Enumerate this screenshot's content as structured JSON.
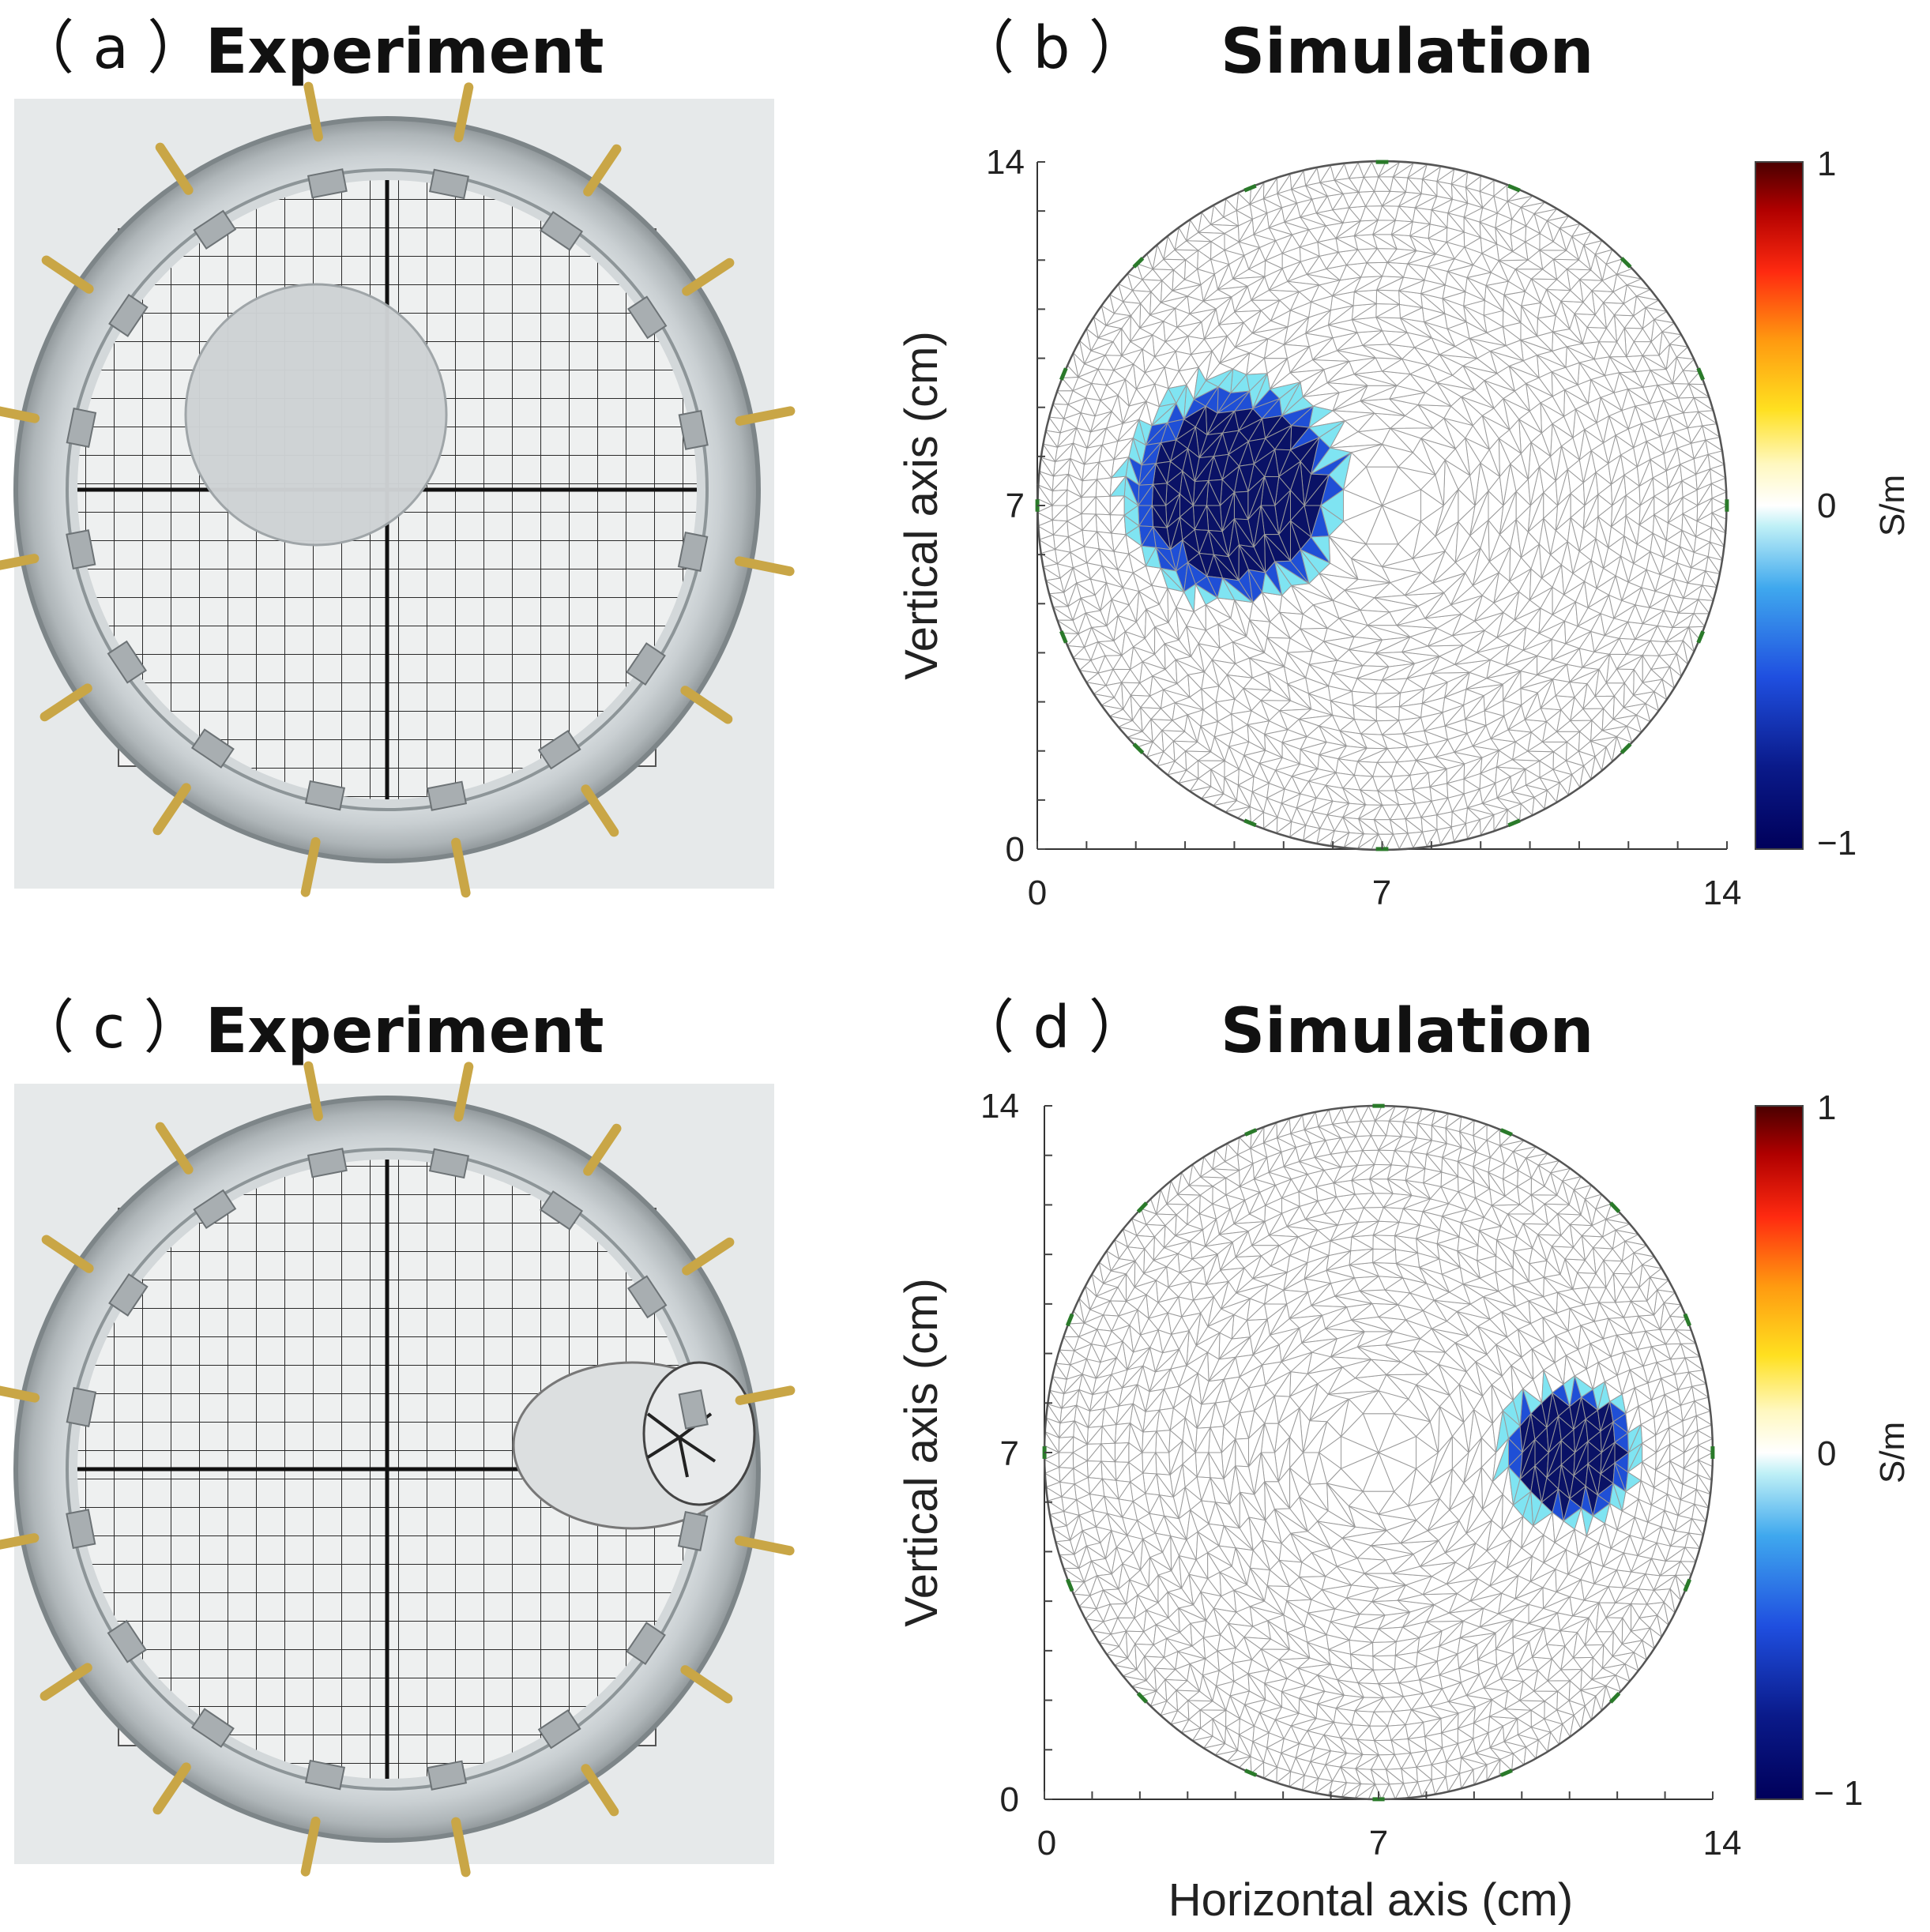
{
  "panels": {
    "a": {
      "label": "（ a ）",
      "title": "Experiment"
    },
    "b": {
      "label": "（ b ）",
      "title": "Simulation"
    },
    "c": {
      "label": "（ c ）",
      "title": "Experiment"
    },
    "d": {
      "label": "（ d ）",
      "title": "Simulation"
    }
  },
  "colors": {
    "low": "#0a0a5e",
    "mid": "#ffffff",
    "high": "#5a0000",
    "mesh": "#9a9a9a",
    "electrode": "#2a7a2a",
    "anomaly_core": "#0a1266",
    "anomaly_mid": "#1f4fd6",
    "anomaly_edge": "#7fe4f2"
  },
  "chart_data": [
    {
      "type": "heatmap",
      "panel": "b",
      "title": "Simulation",
      "xlabel": "",
      "ylabel": "Vertical axis (cm)",
      "xlim": [
        0,
        14
      ],
      "ylim": [
        0,
        14
      ],
      "xticks": [
        "0",
        "7",
        "14"
      ],
      "yticks": [
        "0",
        "7",
        "14"
      ],
      "colorbar": {
        "label": "S/m",
        "range": [
          -1,
          1
        ],
        "ticks": [
          "1",
          "0",
          "−1"
        ]
      },
      "domain": {
        "shape": "circle",
        "center": [
          7,
          7
        ],
        "radius": 7
      },
      "anomaly": {
        "center": [
          4.0,
          7.3
        ],
        "radius": 2.15,
        "value": -1
      }
    },
    {
      "type": "heatmap",
      "panel": "d",
      "title": "Simulation",
      "xlabel": "Horizontal axis (cm)",
      "ylabel": "Vertical axis (cm)",
      "xlim": [
        0,
        14
      ],
      "ylim": [
        0,
        14
      ],
      "xticks": [
        "0",
        "7",
        "14"
      ],
      "yticks": [
        "0",
        "7",
        "14"
      ],
      "colorbar": {
        "label": "S/m",
        "range": [
          -1,
          1
        ],
        "ticks": [
          "1",
          "0",
          "− 1"
        ]
      },
      "domain": {
        "shape": "circle",
        "center": [
          7,
          7
        ],
        "radius": 7
      },
      "anomaly": {
        "center": [
          11.0,
          7.0
        ],
        "radius": 1.35,
        "value": -1
      }
    }
  ]
}
